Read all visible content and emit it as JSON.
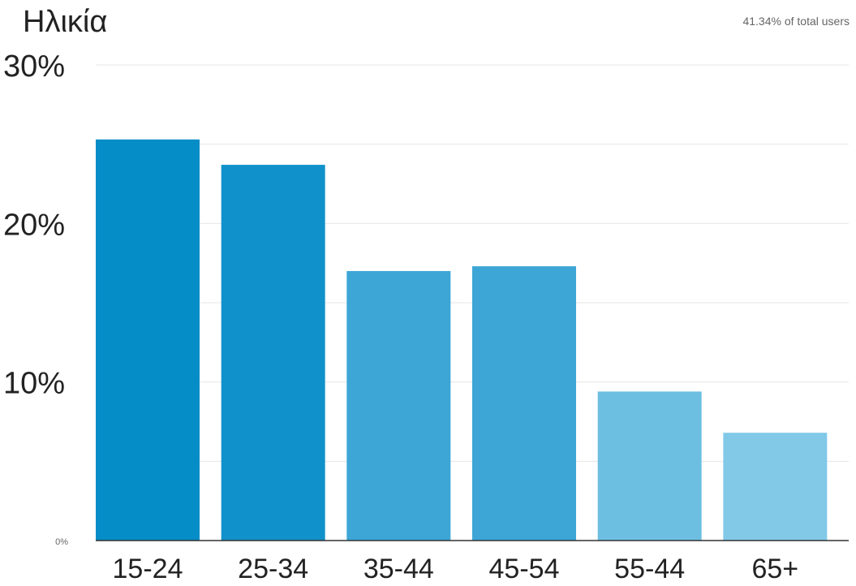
{
  "chart_data": {
    "type": "bar",
    "title": "Ηλικία",
    "subtitle": "41.34% of total users",
    "categories": [
      "15-24",
      "25-34",
      "35-44",
      "45-54",
      "55-44",
      "65+"
    ],
    "values": [
      25.3,
      23.7,
      17.0,
      17.3,
      9.4,
      6.8
    ],
    "y_ticks": [
      {
        "value": 0,
        "label": "0%"
      },
      {
        "value": 10,
        "label": "10%"
      },
      {
        "value": 20,
        "label": "20%"
      },
      {
        "value": 30,
        "label": "30%"
      }
    ],
    "ylim": [
      0,
      30
    ],
    "xlabel": "",
    "ylabel": "",
    "grid": true,
    "bar_colors": [
      "#058dc7",
      "#1191cb",
      "#3da6d6",
      "#3da6d6",
      "#6dbfe2",
      "#82c9e8"
    ],
    "grid_color": "#e6e6e6",
    "axis_color": "#333333"
  }
}
